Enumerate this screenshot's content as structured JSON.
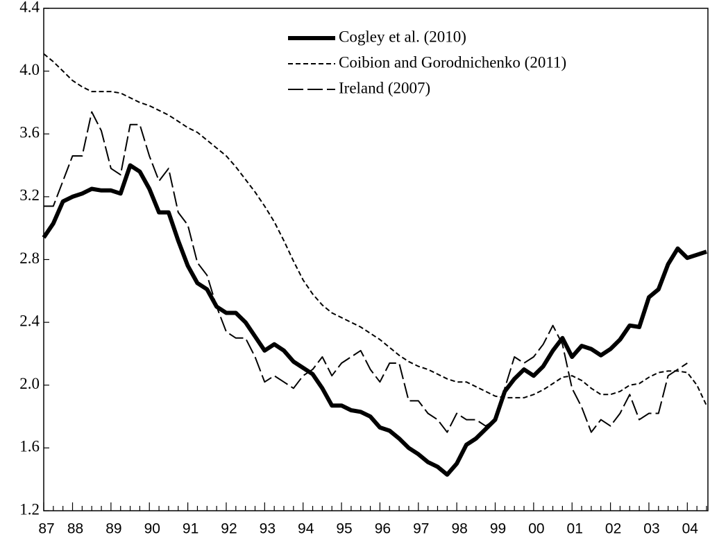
{
  "chart_data": {
    "type": "line",
    "categories": [
      "87",
      null,
      null,
      "88",
      null,
      null,
      null,
      "89",
      null,
      null,
      null,
      "90",
      null,
      null,
      null,
      "91",
      null,
      null,
      null,
      "92",
      null,
      null,
      null,
      "93",
      null,
      null,
      null,
      "94",
      null,
      null,
      null,
      "95",
      null,
      null,
      null,
      "96",
      null,
      null,
      null,
      "97",
      null,
      null,
      null,
      "98",
      null,
      null,
      null,
      "99",
      null,
      null,
      null,
      "00",
      null,
      null,
      null,
      "01",
      null,
      null,
      null,
      "02",
      null,
      null,
      null,
      "03",
      null,
      null,
      null,
      "04",
      null,
      null
    ],
    "series": [
      {
        "name": "Cogley et al. (2010)",
        "color": "#000000",
        "dash": "solid",
        "width": 6,
        "values": [
          2.94,
          3.03,
          3.17,
          3.2,
          3.22,
          3.25,
          3.24,
          3.24,
          3.22,
          3.4,
          3.36,
          3.25,
          3.1,
          3.1,
          2.92,
          2.76,
          2.65,
          2.61,
          2.5,
          2.46,
          2.46,
          2.4,
          2.31,
          2.22,
          2.26,
          2.22,
          2.15,
          2.11,
          2.07,
          1.98,
          1.87,
          1.87,
          1.84,
          1.83,
          1.8,
          1.73,
          1.71,
          1.66,
          1.6,
          1.56,
          1.51,
          1.48,
          1.43,
          1.5,
          1.62,
          1.66,
          1.72,
          1.78,
          1.96,
          2.04,
          2.1,
          2.06,
          2.12,
          2.22,
          2.3,
          2.18,
          2.25,
          2.23,
          2.19,
          2.23,
          2.29,
          2.38,
          2.37,
          2.56,
          2.61,
          2.77,
          2.87,
          2.81,
          2.83,
          2.85
        ]
      },
      {
        "name": "Coibion and Gorodnichenko (2011)",
        "color": "#000000",
        "dash": "short",
        "width": 2,
        "values": [
          4.11,
          4.06,
          4.0,
          3.94,
          3.9,
          3.87,
          3.87,
          3.87,
          3.86,
          3.83,
          3.8,
          3.78,
          3.75,
          3.72,
          3.68,
          3.64,
          3.61,
          3.56,
          3.51,
          3.46,
          3.39,
          3.31,
          3.23,
          3.14,
          3.04,
          2.92,
          2.79,
          2.67,
          2.58,
          2.51,
          2.46,
          2.43,
          2.4,
          2.37,
          2.33,
          2.29,
          2.24,
          2.19,
          2.15,
          2.12,
          2.1,
          2.07,
          2.04,
          2.02,
          2.02,
          1.99,
          1.96,
          1.93,
          1.92,
          1.92,
          1.92,
          1.94,
          1.97,
          2.01,
          2.05,
          2.06,
          2.03,
          1.98,
          1.94,
          1.94,
          1.96,
          2.0,
          2.01,
          2.05,
          2.08,
          2.09,
          2.09,
          2.08,
          2.0,
          1.87
        ]
      },
      {
        "name": "Ireland (2007)",
        "color": "#000000",
        "dash": "long",
        "width": 2,
        "values": [
          3.14,
          3.14,
          3.3,
          3.46,
          3.46,
          3.74,
          3.62,
          3.38,
          3.34,
          3.66,
          3.66,
          3.46,
          3.3,
          3.38,
          3.1,
          3.02,
          2.78,
          2.7,
          2.5,
          2.34,
          2.3,
          2.3,
          2.18,
          2.02,
          2.06,
          2.02,
          1.98,
          2.06,
          2.1,
          2.18,
          2.06,
          2.14,
          2.18,
          2.22,
          2.1,
          2.02,
          2.14,
          2.14,
          1.9,
          1.9,
          1.82,
          1.78,
          1.7,
          1.82,
          1.78,
          1.78,
          1.74,
          1.78,
          1.98,
          2.18,
          2.14,
          2.18,
          2.26,
          2.38,
          2.26,
          1.98,
          1.86,
          1.7,
          1.78,
          1.74,
          1.82,
          1.94,
          1.78,
          1.82,
          1.82,
          2.06,
          2.1,
          2.14,
          null,
          null
        ]
      }
    ],
    "ylim": [
      1.2,
      4.4
    ],
    "yticks": [
      1.2,
      1.6,
      {
        "value": 2,
        "label": "2.0"
      },
      2.4,
      2.8,
      3.2,
      3.6,
      {
        "value": 4,
        "label": "4.0"
      },
      4.4
    ],
    "legend": "upper center"
  }
}
